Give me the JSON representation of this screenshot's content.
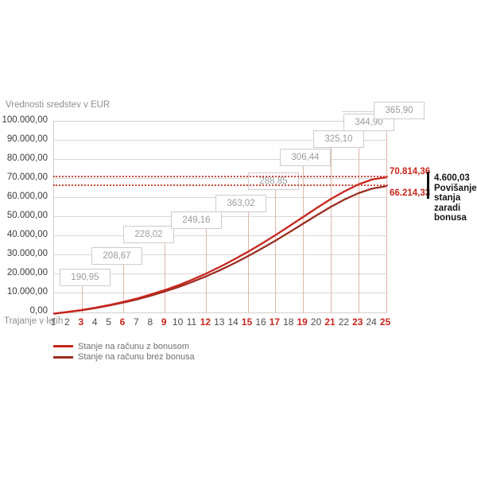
{
  "title": "Vrednosti sredstev v EUR",
  "x_axis": {
    "label": "Trajanje v letih",
    "years": [
      1,
      2,
      3,
      4,
      5,
      6,
      7,
      8,
      9,
      10,
      11,
      12,
      13,
      14,
      15,
      16,
      17,
      18,
      19,
      20,
      21,
      22,
      23,
      24,
      25
    ],
    "highlighted_years": [
      3,
      6,
      9,
      12,
      15,
      17,
      19,
      21,
      23,
      25
    ]
  },
  "y_axis": {
    "labels": [
      "100.000,00",
      "90.000,00",
      "80.000,00",
      "70.000,00",
      "60.000,00",
      "50.000,00",
      "40.000,00",
      "30.000,00",
      "20.000,00",
      "10.000,00",
      "0,00"
    ]
  },
  "callouts": [
    {
      "year": 3,
      "label": "190,95"
    },
    {
      "year": 6,
      "label": "208,67"
    },
    {
      "year": 9,
      "label": "228,02"
    },
    {
      "year": 12,
      "label": "249,16"
    },
    {
      "year": 15,
      "label": "363,02"
    },
    {
      "year": 17,
      "label": "288,85"
    },
    {
      "year": 19,
      "label": "306,44"
    },
    {
      "year": 21,
      "label": "325,10"
    },
    {
      "year": 23,
      "label": "344,90"
    },
    {
      "year": 25,
      "label": "365,90"
    }
  ],
  "thresholds": [
    {
      "value": 70814.36,
      "label": "70.814,36"
    },
    {
      "value": 66214.33,
      "label": "66.214,33"
    }
  ],
  "end_labels": {
    "with_bonus": "70.814,36",
    "without_bonus": "66.214,33"
  },
  "difference_annotation": {
    "lines": [
      "4.600,03",
      "Povišanje",
      "stanja",
      "zaradi",
      "bonusa"
    ]
  },
  "legend": {
    "items": [
      {
        "label": "Stanje na računu z bonusom",
        "color": "#c8251d"
      },
      {
        "label": "Stanje na računu brez bonusa",
        "color": "#9a2d20"
      }
    ]
  },
  "colors": {
    "accent_red": "#c8251d",
    "dark_red": "#9a2d20",
    "grid_gray": "#ddd7d4",
    "grid_pink": "#dfb6ab",
    "box_text": "#9b9b9b",
    "axis_text": "#3b3b3b",
    "muted_text": "#8e8e8e",
    "annotation_black": "#151515"
  },
  "chart_data": {
    "type": "line",
    "title": "Vrednosti sredstev v EUR",
    "xlabel": "Trajanje v letih",
    "ylabel": "EUR",
    "x": [
      1,
      2,
      3,
      4,
      5,
      6,
      7,
      8,
      9,
      10,
      11,
      12,
      13,
      14,
      15,
      16,
      17,
      18,
      19,
      20,
      21,
      22,
      23,
      24,
      25
    ],
    "xlim": [
      1,
      25
    ],
    "ylim": [
      0,
      100000
    ],
    "grid": true,
    "legend_position": "bottom-left",
    "series": [
      {
        "name": "Stanje na računu z bonusom",
        "color": "#c8251d",
        "values": [
          -600,
          300,
          1300,
          2500,
          3900,
          5500,
          7300,
          9400,
          11700,
          14300,
          17200,
          20400,
          23900,
          27700,
          31700,
          36000,
          40500,
          45200,
          50000,
          54800,
          59400,
          63500,
          67100,
          69700,
          70814.36
        ]
      },
      {
        "name": "Stanje na računu brez bonusa",
        "color": "#9a2d20",
        "values": [
          -650,
          200,
          1150,
          2300,
          3650,
          5150,
          6850,
          8800,
          10950,
          13350,
          16000,
          18950,
          22150,
          25650,
          29400,
          33400,
          37600,
          42000,
          46500,
          51000,
          55300,
          59200,
          62500,
          64900,
          66214.33
        ]
      }
    ],
    "point_callouts": {
      "3": "190,95",
      "6": "208,67",
      "9": "228,02",
      "12": "249,16",
      "15": "363,02",
      "17": "288,85",
      "19": "306,44",
      "21": "325,10",
      "23": "344,90",
      "25": "365,90"
    },
    "threshold_lines": [
      70814.36,
      66214.33
    ],
    "final_values": {
      "with_bonus": "70.814,36",
      "without_bonus": "66.214,33",
      "difference": "4.600,03"
    }
  }
}
